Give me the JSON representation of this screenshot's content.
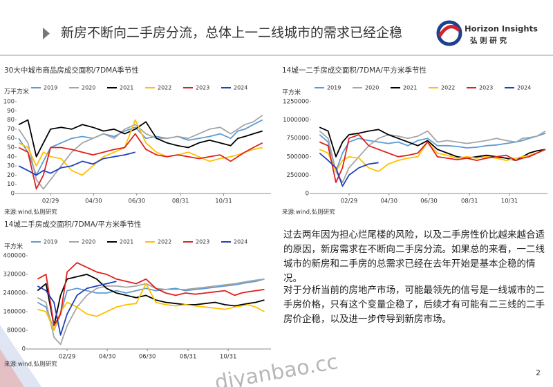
{
  "header": {
    "title": "新房不断向二手房分流，总体上一二线城市的需求已经企稳",
    "logo_en": "Horizon Insights",
    "logo_cn": "弘 则 研 究"
  },
  "chart_data": [
    {
      "type": "line",
      "title": "30大中城市商品房成交面积/7DMA季节性",
      "ylabel": "万平方米",
      "source": "来源:wind,弘则研究",
      "x": [
        15,
        28,
        40,
        50,
        60,
        75,
        90,
        105,
        120,
        135,
        150,
        165,
        180,
        195,
        210,
        225,
        240,
        255,
        270,
        285,
        300,
        315,
        325,
        335,
        347,
        360
      ],
      "xlim": [
        12,
        372
      ],
      "xticks": [
        {
          "value": 60,
          "label": "02/29"
        },
        {
          "value": 121,
          "label": "04/30"
        },
        {
          "value": 182,
          "label": "06/30"
        },
        {
          "value": 244,
          "label": "08/31"
        },
        {
          "value": 305,
          "label": "10/31"
        }
      ],
      "ylim": [
        0,
        100
      ],
      "yticks": [
        0,
        10,
        20,
        30,
        40,
        50,
        60,
        70,
        80,
        90,
        100
      ],
      "series": [
        {
          "name": "2019",
          "color": "#5b9bd5",
          "values": [
            60,
            45,
            20,
            35,
            50,
            55,
            60,
            62,
            60,
            65,
            62,
            68,
            72,
            60,
            62,
            60,
            62,
            58,
            60,
            62,
            65,
            60,
            68,
            70,
            75,
            80
          ]
        },
        {
          "name": "2020",
          "color": "#a5a5a5",
          "values": [
            70,
            55,
            15,
            5,
            15,
            30,
            45,
            55,
            60,
            65,
            60,
            70,
            75,
            65,
            60,
            60,
            62,
            60,
            65,
            70,
            72,
            65,
            70,
            75,
            78,
            85
          ]
        },
        {
          "name": "2021",
          "color": "#000000",
          "values": [
            75,
            80,
            40,
            55,
            70,
            72,
            70,
            75,
            72,
            68,
            70,
            65,
            70,
            78,
            60,
            55,
            52,
            50,
            55,
            58,
            55,
            52,
            60,
            62,
            65,
            68
          ]
        },
        {
          "name": "2022",
          "color": "#ffc000",
          "values": [
            55,
            50,
            30,
            45,
            40,
            38,
            25,
            20,
            30,
            40,
            45,
            50,
            80,
            55,
            45,
            40,
            42,
            45,
            40,
            35,
            38,
            40,
            42,
            45,
            48,
            50
          ]
        },
        {
          "name": "2023",
          "color": "#e0201b",
          "values": [
            50,
            45,
            5,
            20,
            50,
            50,
            48,
            45,
            42,
            45,
            48,
            50,
            65,
            48,
            42,
            40,
            42,
            40,
            38,
            40,
            42,
            35,
            40,
            45,
            50,
            55
          ]
        },
        {
          "name": "2024",
          "color": "#1f3fbf",
          "values": [
            30,
            25,
            20,
            25,
            22,
            28,
            30,
            35,
            32,
            38,
            40,
            42,
            45,
            null,
            null,
            null,
            null,
            null,
            null,
            null,
            null,
            null,
            null,
            null,
            null,
            null
          ]
        }
      ]
    },
    {
      "type": "line",
      "title": "14城一二手房成交面积/7DMA/平方米季节性",
      "ylabel": "平方米",
      "source": "来源:wind,弘则研究",
      "x": [
        15,
        28,
        40,
        50,
        60,
        75,
        90,
        105,
        120,
        135,
        150,
        165,
        180,
        195,
        210,
        225,
        240,
        255,
        270,
        285,
        300,
        315,
        325,
        335,
        347,
        360
      ],
      "xlim": [
        2,
        363
      ],
      "xticks": [
        {
          "value": 60,
          "label": "02/29"
        },
        {
          "value": 121,
          "label": "04/30"
        },
        {
          "value": 182,
          "label": "06/30"
        },
        {
          "value": 244,
          "label": "08/31"
        },
        {
          "value": 305,
          "label": "10/31"
        }
      ],
      "ylim": [
        0,
        1250000
      ],
      "yticks": [
        0,
        250000,
        500000,
        750000,
        1000000,
        1250000
      ],
      "series": [
        {
          "name": "2019",
          "color": "#5b9bd5",
          "values": [
            800000,
            700000,
            300000,
            550000,
            700000,
            750000,
            720000,
            700000,
            680000,
            700000,
            650000,
            720000,
            750000,
            650000,
            650000,
            640000,
            620000,
            630000,
            650000,
            660000,
            680000,
            700000,
            720000,
            750000,
            780000,
            820000
          ]
        },
        {
          "name": "2020",
          "color": "#a5a5a5",
          "values": [
            850000,
            750000,
            300000,
            150000,
            350000,
            500000,
            650000,
            750000,
            800000,
            780000,
            750000,
            780000,
            850000,
            700000,
            720000,
            700000,
            680000,
            700000,
            720000,
            750000,
            720000,
            700000,
            750000,
            760000,
            780000,
            850000
          ]
        },
        {
          "name": "2021",
          "color": "#000000",
          "values": [
            900000,
            850000,
            500000,
            700000,
            800000,
            820000,
            850000,
            870000,
            800000,
            750000,
            700000,
            650000,
            720000,
            600000,
            550000,
            500000,
            480000,
            500000,
            520000,
            500000,
            480000,
            450000,
            500000,
            550000,
            580000,
            600000
          ]
        },
        {
          "name": "2022",
          "color": "#ffc000",
          "values": [
            600000,
            550000,
            300000,
            450000,
            500000,
            480000,
            350000,
            300000,
            400000,
            450000,
            480000,
            500000,
            700000,
            550000,
            520000,
            480000,
            500000,
            480000,
            500000,
            480000,
            450000,
            480000,
            500000,
            520000,
            550000,
            600000
          ]
        },
        {
          "name": "2023",
          "color": "#e0201b",
          "values": [
            700000,
            650000,
            150000,
            350000,
            750000,
            800000,
            650000,
            600000,
            550000,
            500000,
            520000,
            550000,
            700000,
            500000,
            480000,
            460000,
            480000,
            450000,
            480000,
            500000,
            520000,
            450000,
            480000,
            500000,
            550000,
            600000
          ]
        },
        {
          "name": "2024",
          "color": "#1f3fbf",
          "values": [
            550000,
            450000,
            350000,
            100000,
            250000,
            350000,
            400000,
            420000,
            null,
            null,
            null,
            null,
            null,
            null,
            null,
            null,
            null,
            null,
            null,
            null,
            null,
            null,
            null,
            null,
            null,
            null
          ]
        }
      ]
    },
    {
      "type": "line",
      "title": "14城二手房成交面积/7DMA/平方米季节性",
      "ylabel": "平方米",
      "source": "来源:wind,弘则研究",
      "x": [
        15,
        28,
        40,
        50,
        60,
        75,
        90,
        105,
        120,
        135,
        150,
        165,
        180,
        195,
        210,
        225,
        240,
        255,
        270,
        285,
        300,
        315,
        325,
        335,
        347,
        360
      ],
      "xlim": [
        0,
        370
      ],
      "xticks": [
        {
          "value": 60,
          "label": "02/29"
        },
        {
          "value": 121,
          "label": "04/30"
        },
        {
          "value": 182,
          "label": "06/30"
        },
        {
          "value": 244,
          "label": "08/31"
        },
        {
          "value": 305,
          "label": "10/31"
        }
      ],
      "ylim": [
        0,
        400000
      ],
      "yticks": [
        0,
        80000,
        160000,
        240000,
        320000,
        400000
      ],
      "series": [
        {
          "name": "2019",
          "color": "#5b9bd5",
          "values": [
            200000,
            180000,
            80000,
            150000,
            250000,
            260000,
            250000,
            240000,
            240000,
            250000,
            240000,
            250000,
            260000,
            250000,
            255000,
            260000,
            250000,
            255000,
            260000,
            265000,
            270000,
            275000,
            280000,
            285000,
            290000,
            300000
          ]
        },
        {
          "name": "2020",
          "color": "#a5a5a5",
          "values": [
            220000,
            200000,
            50000,
            20000,
            100000,
            180000,
            230000,
            260000,
            270000,
            270000,
            265000,
            270000,
            280000,
            260000,
            255000,
            255000,
            255000,
            260000,
            265000,
            270000,
            275000,
            280000,
            285000,
            290000,
            295000,
            300000
          ]
        },
        {
          "name": "2021",
          "color": "#000000",
          "values": [
            250000,
            280000,
            100000,
            230000,
            300000,
            310000,
            320000,
            300000,
            260000,
            240000,
            230000,
            220000,
            230000,
            210000,
            200000,
            195000,
            190000,
            190000,
            195000,
            200000,
            190000,
            185000,
            190000,
            195000,
            200000,
            210000
          ]
        },
        {
          "name": "2022",
          "color": "#ffc000",
          "values": [
            170000,
            160000,
            80000,
            160000,
            200000,
            180000,
            150000,
            140000,
            160000,
            180000,
            190000,
            195000,
            280000,
            200000,
            190000,
            185000,
            190000,
            185000,
            180000,
            175000,
            170000,
            180000,
            185000,
            190000,
            180000,
            160000
          ]
        },
        {
          "name": "2023",
          "color": "#e0201b",
          "values": [
            300000,
            320000,
            100000,
            150000,
            330000,
            370000,
            350000,
            330000,
            320000,
            300000,
            290000,
            280000,
            300000,
            260000,
            240000,
            230000,
            240000,
            235000,
            240000,
            245000,
            250000,
            230000,
            240000,
            245000,
            250000,
            255000
          ]
        },
        {
          "name": "2024",
          "color": "#1f3fbf",
          "values": [
            270000,
            250000,
            200000,
            60000,
            150000,
            230000,
            260000,
            270000,
            280000,
            290000,
            null,
            null,
            null,
            null,
            null,
            null,
            null,
            null,
            null,
            null,
            null,
            null,
            null,
            null,
            null,
            null
          ]
        }
      ]
    }
  ],
  "body": {
    "paragraphs": [
      "过去两年因为担心烂尾楼的风险，以及二手房性价比越来越合适的原因，新房需求在不断向二手房分流。如果总的来看，一二线城市的新房和二手房的总需求已经在去年开始是基本企稳的情况。",
      "对于分析当前的房地产市场，可能最领先的信号是一线城市的二手房价格，只有这个变量企稳了，后续才有可能有二三线的二手房价企稳，以及进一步传导到新房市场。"
    ]
  },
  "page_number": "2",
  "watermark": "djyanbao.cc"
}
